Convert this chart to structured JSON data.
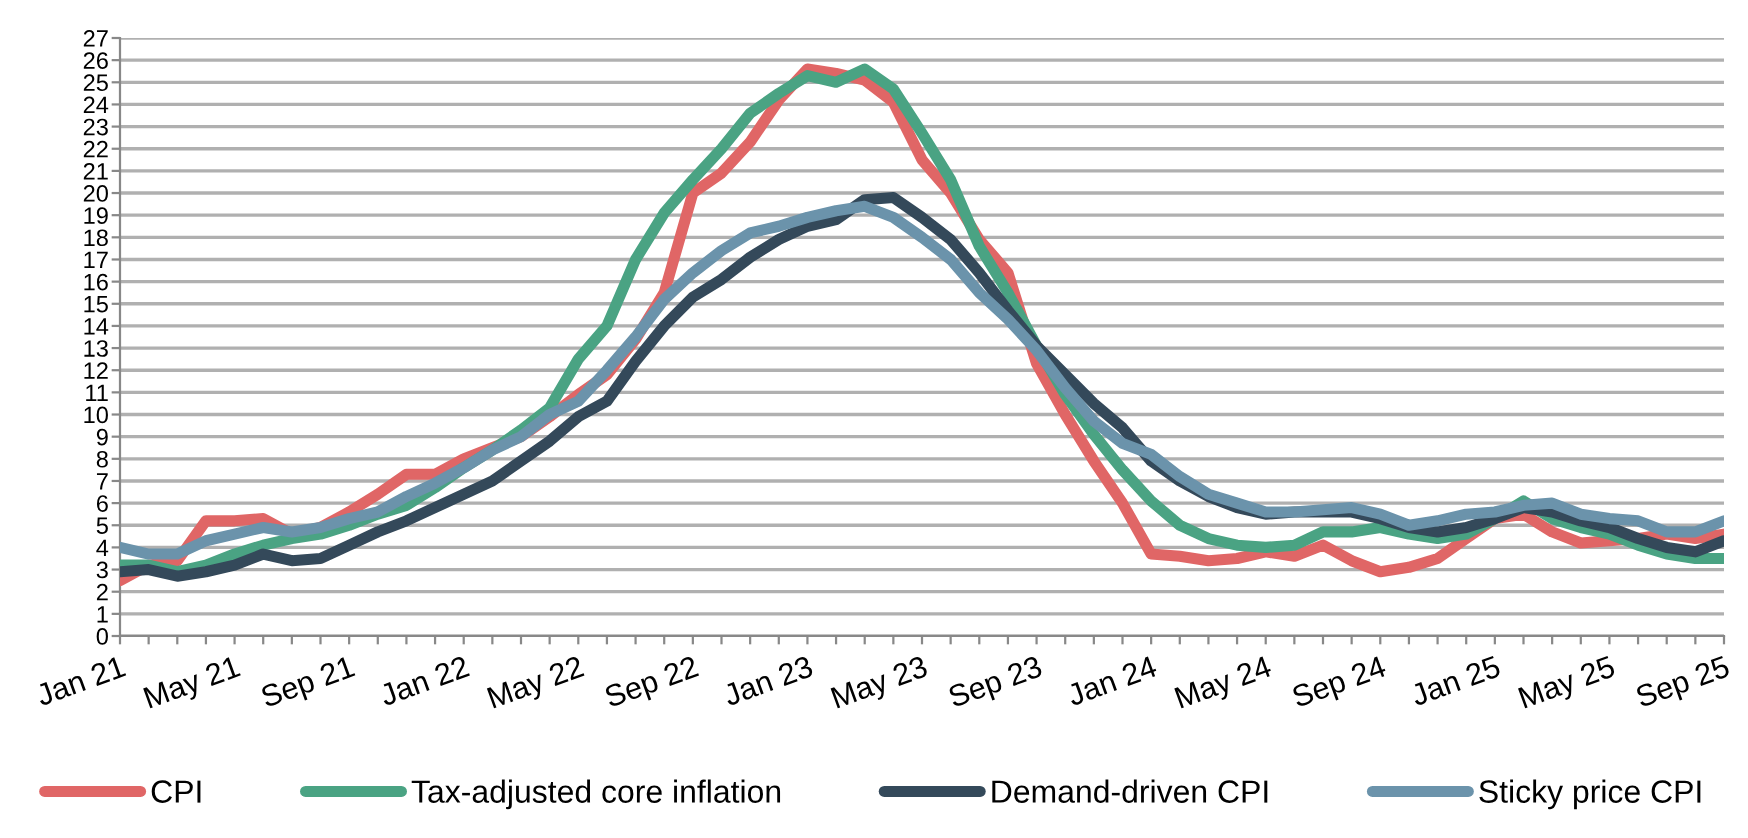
{
  "chart_data": {
    "type": "line",
    "categories": [
      "Jan 21",
      null,
      null,
      null,
      "May 21",
      null,
      null,
      null,
      "Sep 21",
      null,
      null,
      null,
      "Jan 22",
      null,
      null,
      null,
      "May 22",
      null,
      null,
      null,
      "Sep 22",
      null,
      null,
      null,
      "Jan 23",
      null,
      null,
      null,
      "May 23",
      null,
      null,
      null,
      "Sep 23",
      null,
      null,
      null,
      "Jan 24",
      null,
      null,
      null,
      "May 24",
      null,
      null,
      null,
      "Sep 24",
      null,
      null,
      null,
      "Jan 25",
      null,
      null,
      null,
      "May 25",
      null,
      null,
      null,
      "Sep 25"
    ],
    "ylim": [
      0,
      27
    ],
    "yticks": [
      0,
      1,
      2,
      3,
      4,
      5,
      6,
      7,
      8,
      9,
      10,
      11,
      12,
      13,
      14,
      15,
      16,
      17,
      18,
      19,
      20,
      21,
      22,
      23,
      24,
      25,
      26,
      27
    ],
    "grid": "y",
    "legend": "bottom",
    "line_style": "solid",
    "marker": "none",
    "series": [
      {
        "name": "CPI",
        "color": "#e06666",
        "values": [
          2.5,
          3.2,
          3.4,
          5.2,
          5.2,
          5.3,
          4.6,
          4.9,
          5.6,
          6.4,
          7.3,
          7.3,
          8.0,
          8.5,
          9.0,
          9.9,
          10.9,
          11.8,
          13.4,
          15.5,
          20.0,
          20.9,
          22.3,
          24.2,
          25.6,
          25.4,
          25.1,
          24.1,
          21.5,
          20.0,
          17.9,
          16.4,
          12.3,
          10.0,
          7.9,
          6.0,
          3.7,
          3.6,
          3.4,
          3.5,
          3.8,
          3.6,
          4.1,
          3.4,
          2.9,
          3.1,
          3.5,
          4.4,
          5.3,
          5.5,
          4.7,
          4.2,
          4.3,
          4.4,
          4.6,
          4.4,
          4.6
        ]
      },
      {
        "name": "Tax-adjusted core inflation",
        "color": "#4aa383",
        "values": [
          3.2,
          3.2,
          2.9,
          3.2,
          3.7,
          4.1,
          4.4,
          4.6,
          5.0,
          5.5,
          5.9,
          6.7,
          7.6,
          8.4,
          9.3,
          10.3,
          12.5,
          14.0,
          17.0,
          19.1,
          20.6,
          22.0,
          23.6,
          24.5,
          25.3,
          25.0,
          25.6,
          24.7,
          22.7,
          20.6,
          17.6,
          15.5,
          13.1,
          10.9,
          9.1,
          7.5,
          6.1,
          5.0,
          4.4,
          4.1,
          4.0,
          4.1,
          4.7,
          4.7,
          4.9,
          4.6,
          4.4,
          4.6,
          5.3,
          6.1,
          5.3,
          4.9,
          4.6,
          4.1,
          3.7,
          3.5,
          3.5
        ]
      },
      {
        "name": "Demand-driven CPI",
        "color": "#34495a",
        "values": [
          2.9,
          3.0,
          2.7,
          2.9,
          3.2,
          3.7,
          3.4,
          3.5,
          4.1,
          4.7,
          5.2,
          5.8,
          6.4,
          7.0,
          7.9,
          8.8,
          9.9,
          10.6,
          12.4,
          14.0,
          15.3,
          16.1,
          17.1,
          17.9,
          18.5,
          18.8,
          19.7,
          19.8,
          18.9,
          17.9,
          16.4,
          14.7,
          13.1,
          11.8,
          10.5,
          9.4,
          7.9,
          7.0,
          6.3,
          5.8,
          5.5,
          5.6,
          5.6,
          5.6,
          5.3,
          4.9,
          4.7,
          4.9,
          5.3,
          5.8,
          5.6,
          5.2,
          4.9,
          4.4,
          4.0,
          3.8,
          4.3
        ]
      },
      {
        "name": "Sticky price CPI",
        "color": "#6b93ab",
        "values": [
          4.0,
          3.7,
          3.7,
          4.3,
          4.6,
          4.9,
          4.7,
          4.9,
          5.3,
          5.6,
          6.3,
          6.9,
          7.6,
          8.4,
          9.0,
          10.0,
          10.6,
          12.0,
          13.5,
          15.2,
          16.4,
          17.4,
          18.2,
          18.5,
          18.9,
          19.2,
          19.4,
          18.9,
          18.0,
          17.0,
          15.5,
          14.3,
          12.9,
          11.2,
          9.7,
          8.7,
          8.2,
          7.2,
          6.4,
          6.0,
          5.6,
          5.6,
          5.7,
          5.8,
          5.5,
          5.0,
          5.2,
          5.5,
          5.6,
          5.9,
          6.0,
          5.5,
          5.3,
          5.2,
          4.7,
          4.7,
          5.2
        ]
      }
    ]
  }
}
